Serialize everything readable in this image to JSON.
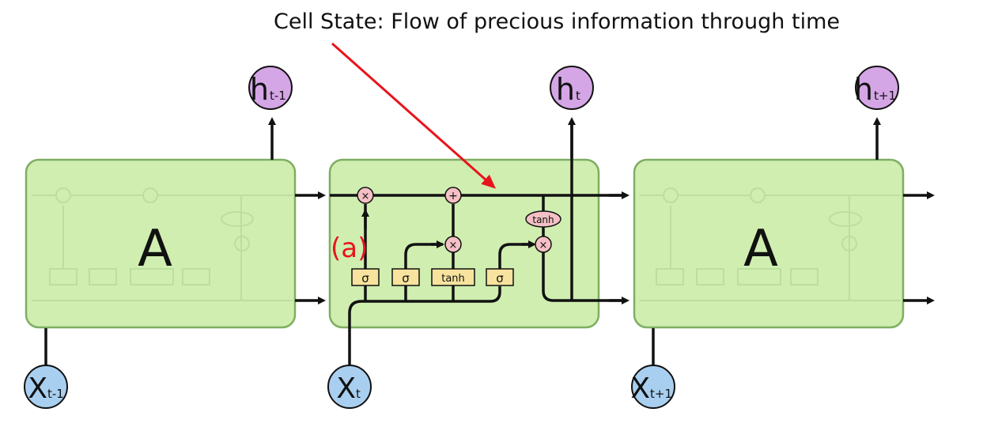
{
  "annotation": {
    "text": "Cell State: Flow of precious information through time",
    "arrow_color": "#e8141c"
  },
  "left_cell": {
    "label": "A",
    "hidden_label": "h",
    "hidden_sub": "t-1",
    "input_label": "X",
    "input_sub": "t-1"
  },
  "center_cell": {
    "hidden_label": "h",
    "hidden_sub": "t",
    "input_label": "X",
    "input_sub": "t",
    "ops": {
      "multiply": "×",
      "add": "+",
      "tanh": "tanh"
    },
    "gates": [
      "σ",
      "σ",
      "tanh",
      "σ"
    ],
    "marker": "(a)"
  },
  "right_cell": {
    "label": "A",
    "hidden_label": "h",
    "hidden_sub": "t+1",
    "input_label": "X",
    "input_sub": "t+1"
  },
  "colors": {
    "cell_fill": "#cfeeb0",
    "cell_stroke": "#7fae62",
    "hidden_node": "#d5a6e6",
    "input_node": "#a9cff0",
    "gate_fill": "#f7e39e",
    "op_fill": "#f4c0c5",
    "marker": "#e8141c"
  }
}
